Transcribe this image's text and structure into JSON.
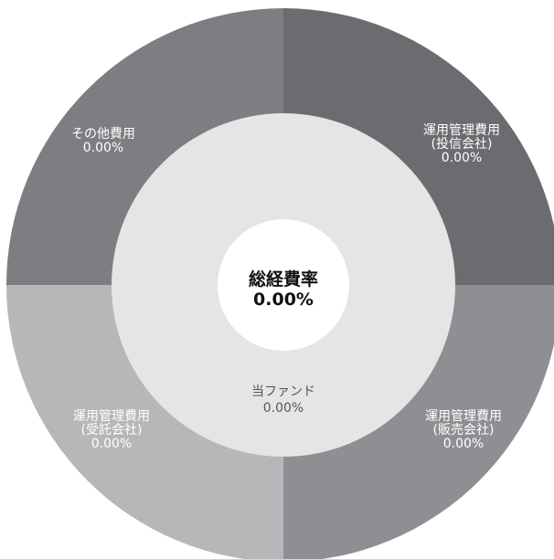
{
  "chart_data": {
    "type": "pie",
    "center": {
      "title": "総経費率",
      "value": "0.00%"
    },
    "inner_ring": {
      "label": "当ファンド",
      "value": "0.00%",
      "color": "#e5e5e6"
    },
    "segments": [
      {
        "lines": [
          "運用管理費用",
          "(投信会社)",
          "0.00%"
        ],
        "value": 0.0,
        "color": "#6b6c6f"
      },
      {
        "lines": [
          "運用管理費用",
          "(販売会社)",
          "0.00%"
        ],
        "value": 0.0,
        "color": "#8e8f92"
      },
      {
        "lines": [
          "運用管理費用",
          "(受託会社)",
          "0.00%"
        ],
        "value": 0.0,
        "color": "#b6b7b9"
      },
      {
        "lines": [
          "その他費用",
          "0.00%"
        ],
        "value": 0.0,
        "color": "#7d7e81"
      }
    ]
  }
}
